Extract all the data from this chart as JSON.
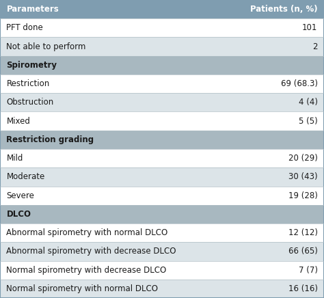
{
  "header": [
    "Parameters",
    "Patients (n, %)"
  ],
  "rows": [
    {
      "label": "PFT done",
      "value": "101",
      "type": "data",
      "shade": false
    },
    {
      "label": "Not able to perform",
      "value": "2",
      "type": "data",
      "shade": true
    },
    {
      "label": "Spirometry",
      "value": "",
      "type": "section",
      "shade": false
    },
    {
      "label": "Restriction",
      "value": "69 (68.3)",
      "type": "data",
      "shade": false
    },
    {
      "label": "Obstruction",
      "value": "4 (4)",
      "type": "data",
      "shade": true
    },
    {
      "label": "Mixed",
      "value": "5 (5)",
      "type": "data",
      "shade": false
    },
    {
      "label": "Restriction grading",
      "value": "",
      "type": "section",
      "shade": false
    },
    {
      "label": "Mild",
      "value": "20 (29)",
      "type": "data",
      "shade": false
    },
    {
      "label": "Moderate",
      "value": "30 (43)",
      "type": "data",
      "shade": true
    },
    {
      "label": "Severe",
      "value": "19 (28)",
      "type": "data",
      "shade": false
    },
    {
      "label": "DLCO",
      "value": "",
      "type": "section",
      "shade": false
    },
    {
      "label": "Abnormal spirometry with normal DLCO",
      "value": "12 (12)",
      "type": "data",
      "shade": false
    },
    {
      "label": "Abnormal spirometry with decrease DLCO",
      "value": "66 (65)",
      "type": "data",
      "shade": true
    },
    {
      "label": "Normal spirometry with decrease DLCO",
      "value": "7 (7)",
      "type": "data",
      "shade": false
    },
    {
      "label": "Normal spirometry with normal DLCO",
      "value": "16 (16)",
      "type": "data",
      "shade": true
    }
  ],
  "header_bg": "#7f9db0",
  "section_bg": "#a8b8c0",
  "shade_bg": "#dce4e8",
  "white_bg": "#ffffff",
  "header_text_color": "#ffffff",
  "section_text_color": "#1a1a1a",
  "data_text_color": "#1a1a1a",
  "outer_border_color": "#7f9db0",
  "line_color": "#b0bec5",
  "fig_width": 4.74,
  "fig_height": 4.36
}
